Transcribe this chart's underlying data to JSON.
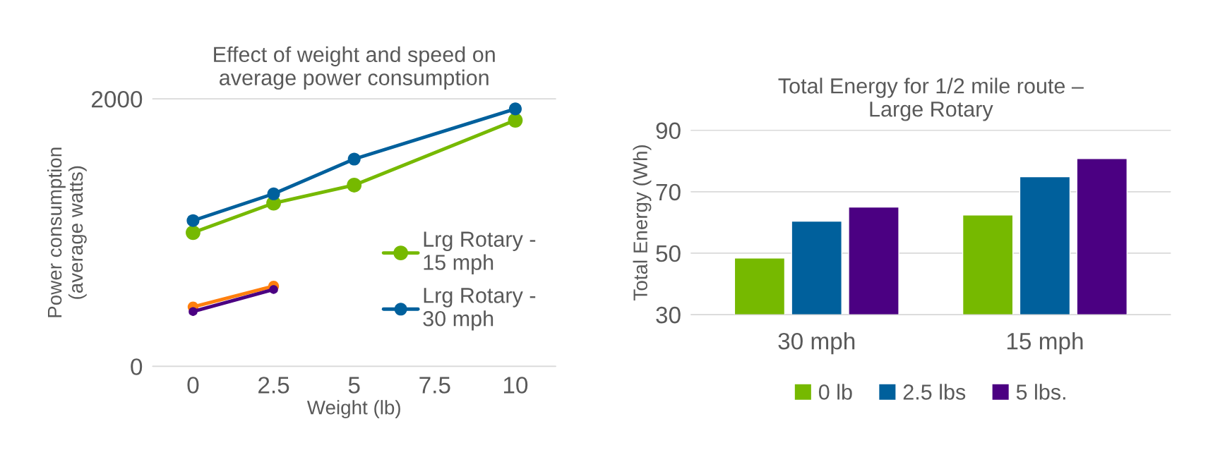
{
  "chart_data": [
    {
      "type": "line",
      "title": "Effect of weight and speed on\naverage power consumption",
      "xlabel": "Weight (lb)",
      "ylabel": "Power consumption\n(average watts)",
      "xlim": [
        -1.25,
        11.25
      ],
      "xticks": [
        0,
        2.5,
        5,
        7.5,
        10
      ],
      "ylim": [
        0,
        2000
      ],
      "yticks": [
        0,
        2000
      ],
      "grid": "y",
      "legend": "right",
      "marker": "circle",
      "series": [
        {
          "name": "Lrg Rotary -\n15 mph",
          "color": "#76b900",
          "x": [
            0,
            2.5,
            5,
            10
          ],
          "values": [
            1000,
            1220,
            1355,
            1840
          ]
        },
        {
          "name": "Lrg Rotary -\n30 mph",
          "color": "#00609c",
          "x": [
            0,
            2.5,
            5,
            10
          ],
          "values": [
            1090,
            1290,
            1550,
            1925
          ]
        },
        {
          "color": "#ff7f0e",
          "x": [
            0,
            2.5
          ],
          "values": [
            445,
            600
          ]
        },
        {
          "color": "#4b0082",
          "x": [
            0,
            2.5
          ],
          "values": [
            410,
            575
          ]
        }
      ]
    },
    {
      "type": "bar",
      "title": "Total Energy for 1/2 mile route –\nLarge Rotary",
      "ylabel": "Total Energy (Wh)",
      "categories": [
        "30 mph",
        "15 mph"
      ],
      "ylim": [
        30,
        90
      ],
      "yticks": [
        30,
        50,
        70,
        90
      ],
      "grid": "y",
      "legend": "bottom",
      "series": [
        {
          "name": "0 lb",
          "color": "#76b900",
          "values": [
            48.4,
            62.4
          ]
        },
        {
          "name": "2.5 lbs",
          "color": "#00609c",
          "values": [
            60.4,
            74.9
          ]
        },
        {
          "name": "5 lbs.",
          "color": "#4b0082",
          "values": [
            65,
            80.8
          ]
        }
      ]
    }
  ]
}
